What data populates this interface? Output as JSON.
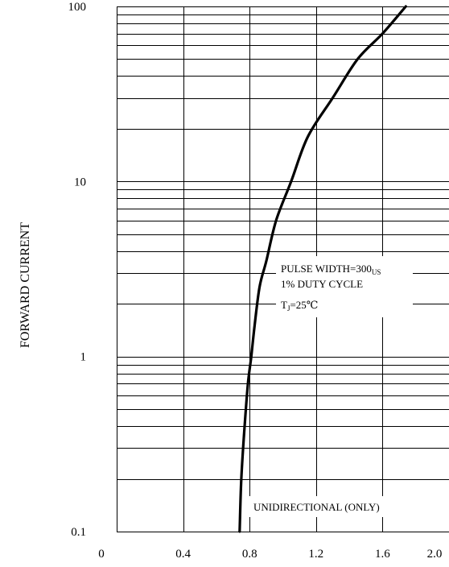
{
  "chart_data": {
    "type": "line",
    "title": "",
    "xlabel": "",
    "ylabel": "FORWARD CURRENT",
    "y_scale": "log",
    "xlim": [
      0,
      2.0
    ],
    "ylim": [
      0.1,
      100
    ],
    "x_ticks": [
      0,
      0.4,
      0.8,
      1.2,
      1.6,
      2.0
    ],
    "x_tick_labels": [
      "0",
      "0.4",
      "0.8",
      "1.2",
      "1.6",
      "2.0"
    ],
    "y_ticks": [
      0.1,
      1,
      10,
      100
    ],
    "y_tick_labels": [
      "0.1",
      "1",
      "10",
      "100"
    ],
    "grid": true,
    "series": [
      {
        "x": [
          0.74,
          0.75,
          0.77,
          0.79,
          0.81,
          0.83,
          0.86,
          0.9,
          0.96,
          1.05,
          1.15,
          1.3,
          1.45,
          1.6,
          1.74
        ],
        "y": [
          0.1,
          0.2,
          0.4,
          0.7,
          1.0,
          1.5,
          2.5,
          3.5,
          6,
          10,
          18,
          30,
          50,
          70,
          100
        ]
      }
    ],
    "annotations": {
      "pulse_prefix": "PULSE WIDTH=300",
      "pulse_unit": "US",
      "duty": "1% DUTY CYCLE",
      "tj_prefix": "T",
      "tj_sub": "J",
      "tj_value": "=25℃",
      "unidirectional": "UNIDIRECTIONAL (ONLY)"
    }
  }
}
